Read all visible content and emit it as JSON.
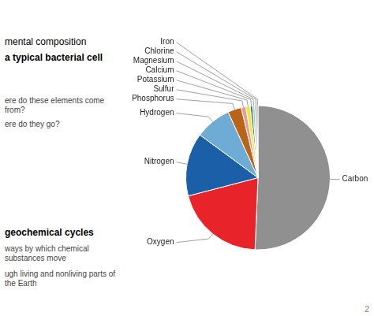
{
  "chart_data": {
    "type": "pie",
    "categories": [
      "Carbon",
      "Oxygen",
      "Nitrogen",
      "Hydrogen",
      "Phosphorus",
      "Sulfur",
      "Potassium",
      "Calcium",
      "Magnesium",
      "Chlorine",
      "Iron"
    ],
    "values": [
      50,
      20,
      14,
      8,
      3,
      1,
      1,
      0.5,
      0.5,
      0.5,
      0.2
    ],
    "colors": [
      "#909090",
      "#e8232a",
      "#1a5fa8",
      "#6eacd5",
      "#b8651a",
      "#eb9a9a",
      "#f5e642",
      "#008060",
      "#c0c0c0",
      "#b0b0b0",
      "#505050"
    ],
    "annotations": [
      "mental composition",
      "a typical bacterial cell",
      "ere do these elements come from?",
      "ere do they go?",
      "geochemical cycles",
      "ways by which chemical substances move",
      "ugh living and nonliving parts of the Earth",
      "2"
    ]
  }
}
